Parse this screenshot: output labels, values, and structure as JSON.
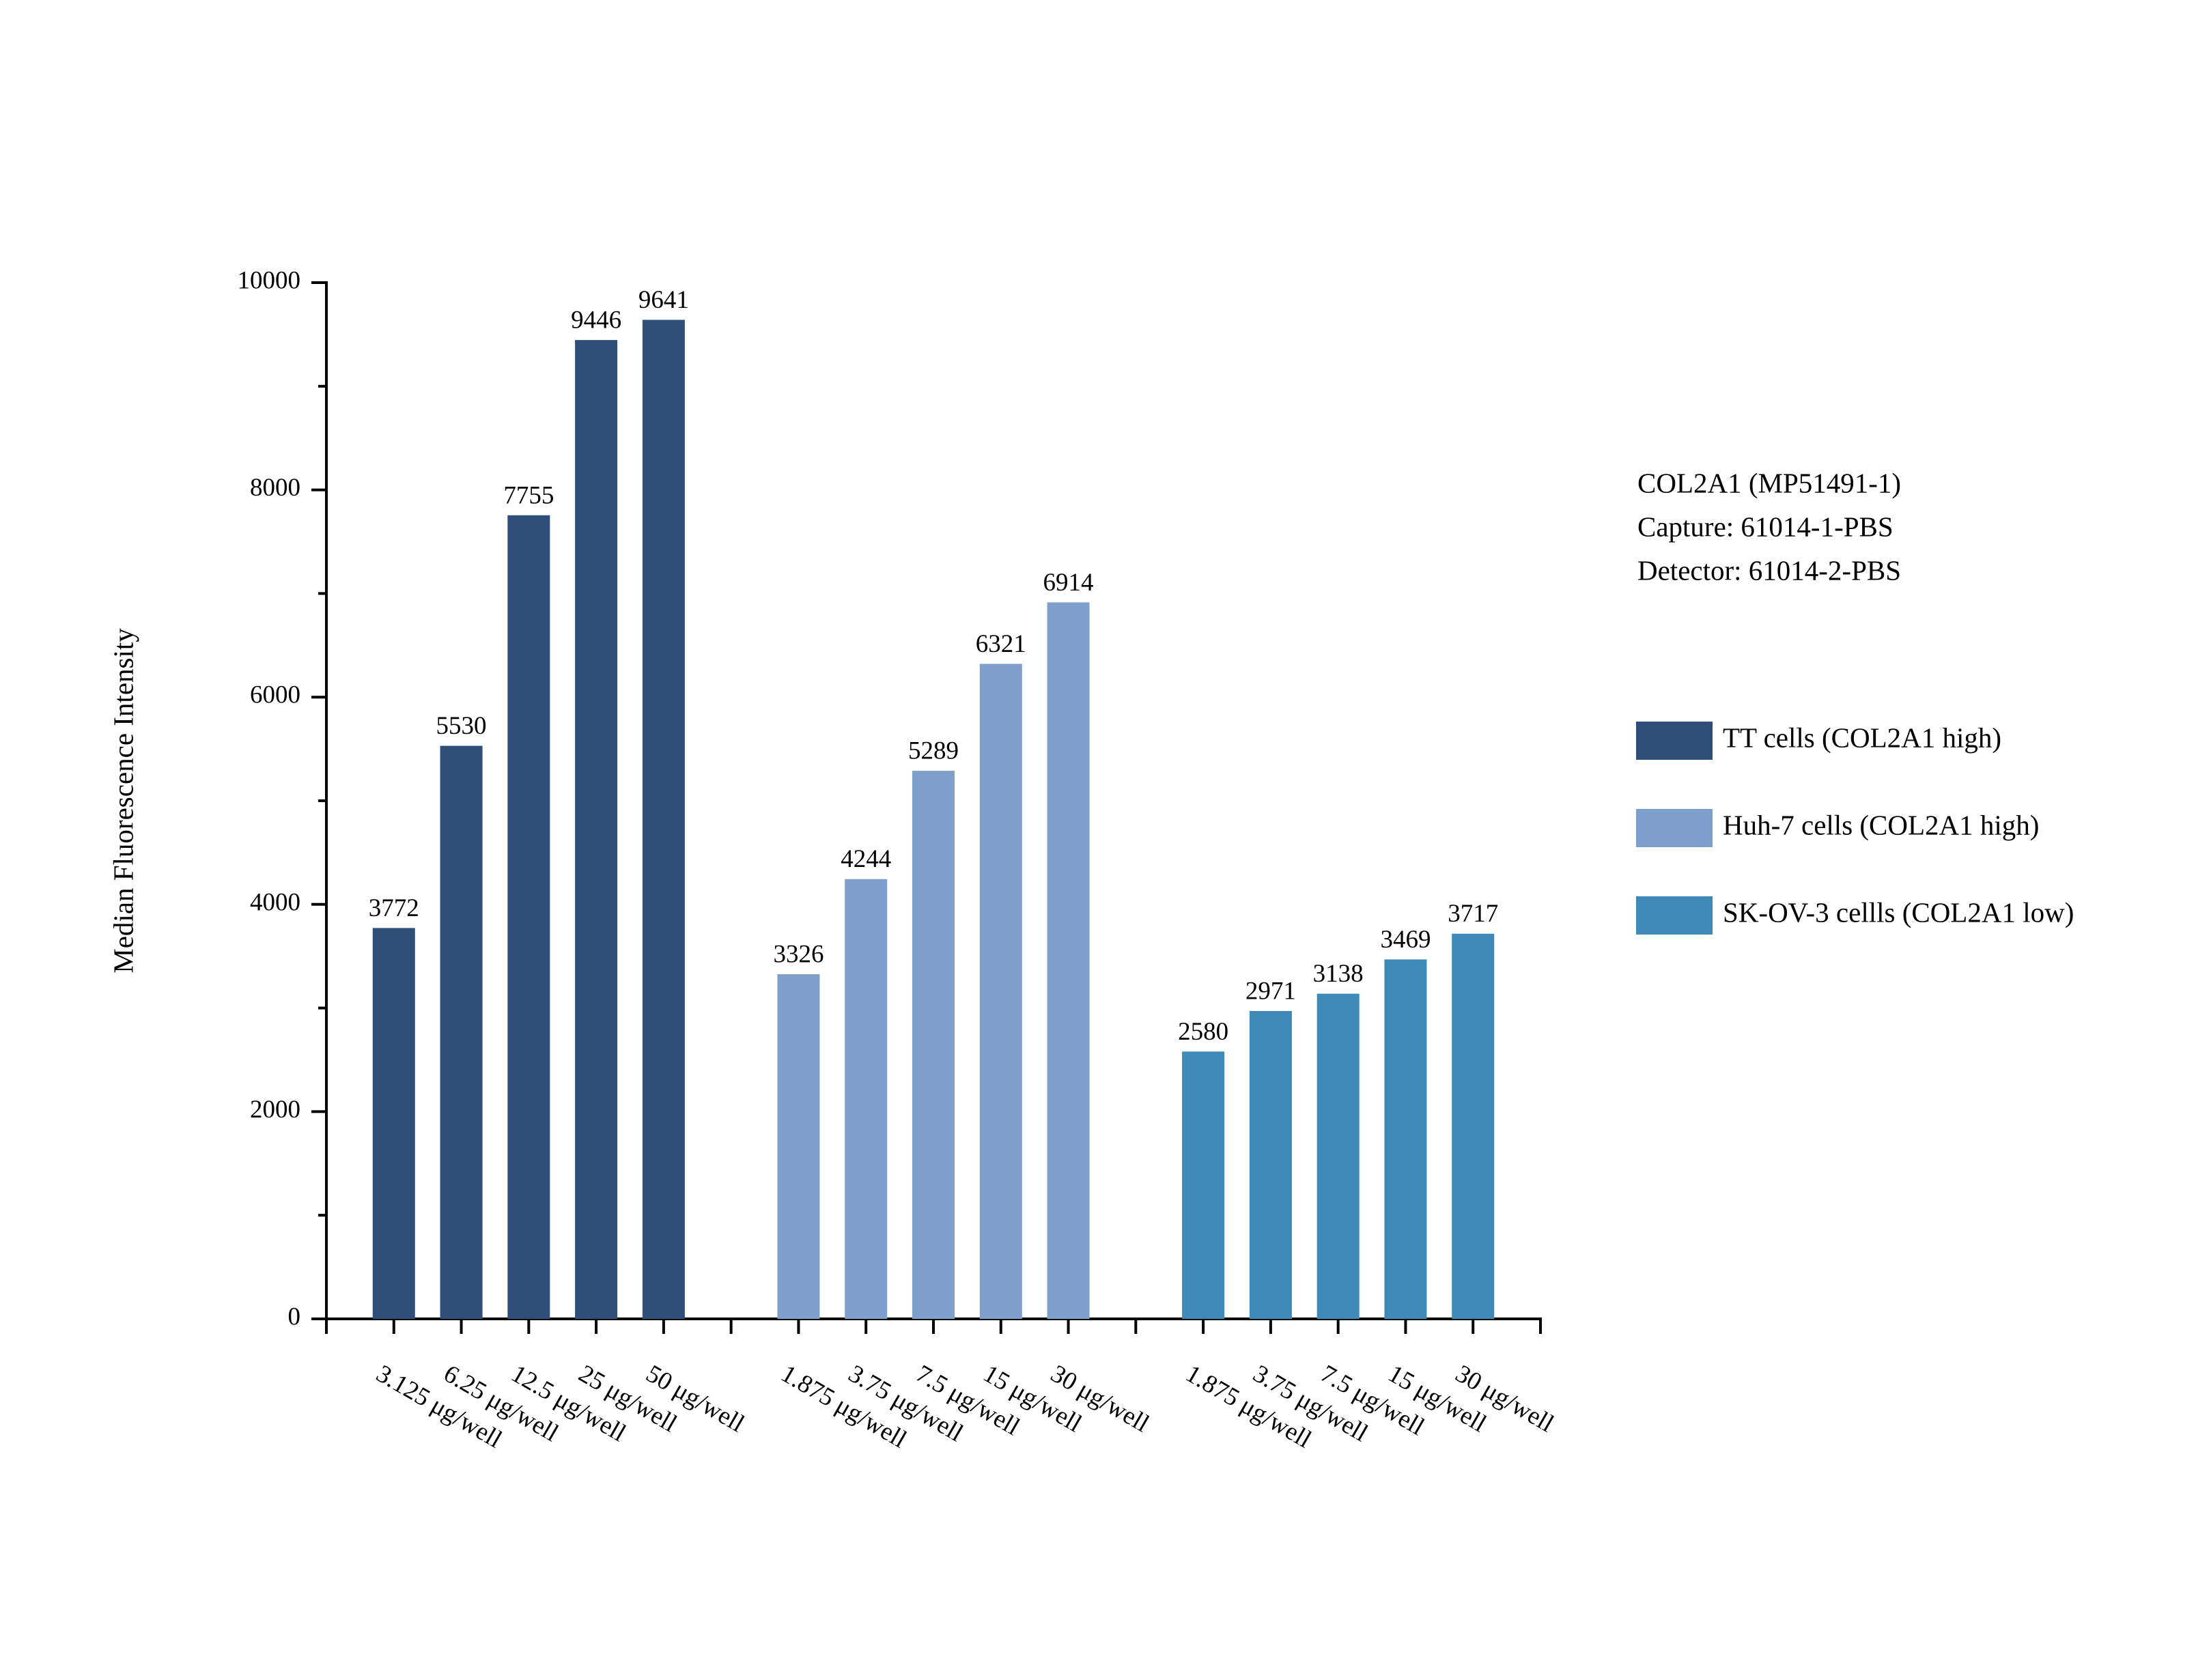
{
  "chart_data": {
    "type": "bar",
    "y_label": "Median Fluorescence Intensity",
    "annotations": [
      "COL2A1 (MP51491-1)",
      "Capture: 61014-1-PBS",
      "Detector: 61014-2-PBS"
    ],
    "categories": [
      null,
      "3.125 μg/well",
      "6.25 μg/well",
      "12.5 μg/well",
      "25 μg/well",
      "50 μg/well",
      null,
      "1.875 μg/well",
      "3.75 μg/well",
      "7.5 μg/well",
      "15 μg/well",
      "30 μg/well",
      null,
      "1.875 μg/well",
      "3.75 μg/well",
      "7.5 μg/well",
      "15 μg/well",
      "30 μg/well",
      null
    ],
    "series": [
      {
        "name": "TT cells (COL2A1 high)",
        "color": "#2f4e79",
        "values": [
          null,
          3772,
          5530,
          7755,
          9446,
          9641,
          null,
          null,
          null,
          null,
          null,
          null,
          null,
          null,
          null,
          null,
          null,
          null,
          null
        ]
      },
      {
        "name": "Huh-7 cells (COL2A1 high)",
        "color": "#7f9fcd",
        "values": [
          null,
          null,
          null,
          null,
          null,
          null,
          null,
          3326,
          4244,
          5289,
          6321,
          6914,
          null,
          null,
          null,
          null,
          null,
          null,
          null
        ]
      },
      {
        "name": "SK-OV-3 cellls (COL2A1 low)",
        "color": "#3d89b8",
        "values": [
          null,
          null,
          null,
          null,
          null,
          null,
          null,
          null,
          null,
          null,
          null,
          null,
          null,
          2580,
          2971,
          3138,
          3469,
          3717,
          null
        ]
      }
    ],
    "ylim": [
      0,
      10000
    ],
    "yticks": [
      0,
      2000,
      4000,
      6000,
      8000,
      10000
    ],
    "value_labels_shown": true,
    "legend": "right"
  }
}
